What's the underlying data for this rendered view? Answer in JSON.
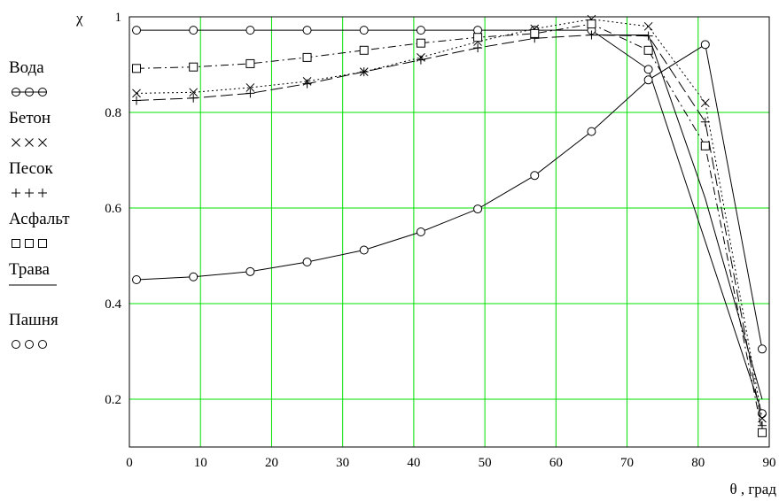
{
  "chart_data": {
    "type": "line",
    "title": "",
    "ylabel": "χ",
    "xlabel": "θ , град",
    "xlim": [
      0,
      90
    ],
    "ylim": [
      0.1,
      1.0
    ],
    "grid": true,
    "grid_color": "#00e000",
    "line_color": "#000000",
    "legend_position": "left",
    "x_ticks": [
      "0",
      "10",
      "20",
      "30",
      "40",
      "50",
      "60",
      "70",
      "80",
      "90"
    ],
    "y_ticks": [
      "0.2",
      "0.4",
      "0.6",
      "0.8",
      "1"
    ],
    "x_tick_values": [
      0,
      10,
      20,
      30,
      40,
      50,
      60,
      70,
      80,
      90
    ],
    "y_tick_values": [
      0.2,
      0.4,
      0.6,
      0.8,
      1.0
    ],
    "series": [
      {
        "name": "Вода",
        "legend_marker": "⊖⊖⊖",
        "marker": "circle",
        "dash": "solid",
        "x": [
          1,
          9,
          17,
          25,
          33,
          41,
          49,
          57,
          65,
          73,
          89
        ],
        "y": [
          0.972,
          0.972,
          0.972,
          0.972,
          0.972,
          0.972,
          0.972,
          0.972,
          0.972,
          0.89,
          0.17
        ]
      },
      {
        "name": "Бетон",
        "legend_marker": "×××",
        "marker": "x",
        "dash": "dot",
        "x": [
          1,
          9,
          17,
          25,
          33,
          41,
          49,
          57,
          65,
          73,
          81,
          89
        ],
        "y": [
          0.84,
          0.842,
          0.852,
          0.865,
          0.885,
          0.915,
          0.948,
          0.975,
          0.995,
          0.98,
          0.82,
          0.16
        ]
      },
      {
        "name": "Песок",
        "legend_marker": "+++",
        "marker": "plus",
        "dash": "longdash",
        "x": [
          1,
          9,
          17,
          25,
          33,
          41,
          49,
          57,
          65,
          73,
          81,
          89
        ],
        "y": [
          0.825,
          0.83,
          0.84,
          0.86,
          0.885,
          0.91,
          0.935,
          0.955,
          0.962,
          0.96,
          0.78,
          0.145
        ]
      },
      {
        "name": "Асфальт",
        "legend_marker": "⊟⊟⊟",
        "marker": "square",
        "dash": "dashdot",
        "x": [
          1,
          9,
          17,
          25,
          33,
          41,
          49,
          57,
          65,
          73,
          81,
          89
        ],
        "y": [
          0.892,
          0.895,
          0.902,
          0.915,
          0.93,
          0.945,
          0.957,
          0.965,
          0.985,
          0.93,
          0.73,
          0.13
        ]
      },
      {
        "name": "Трава",
        "legend_marker": "",
        "marker": "none",
        "dash": "solid",
        "x": [
          65,
          73,
          81,
          89
        ],
        "y": [
          0.962,
          0.962,
          0.62,
          0.2
        ]
      },
      {
        "name": "Пашня",
        "legend_marker": "○○○",
        "marker": "circle",
        "dash": "solid",
        "x": [
          1,
          9,
          17,
          25,
          33,
          41,
          49,
          57,
          65,
          73,
          81,
          89
        ],
        "y": [
          0.45,
          0.456,
          0.467,
          0.487,
          0.512,
          0.55,
          0.598,
          0.668,
          0.76,
          0.868,
          0.942,
          0.305
        ]
      }
    ]
  }
}
